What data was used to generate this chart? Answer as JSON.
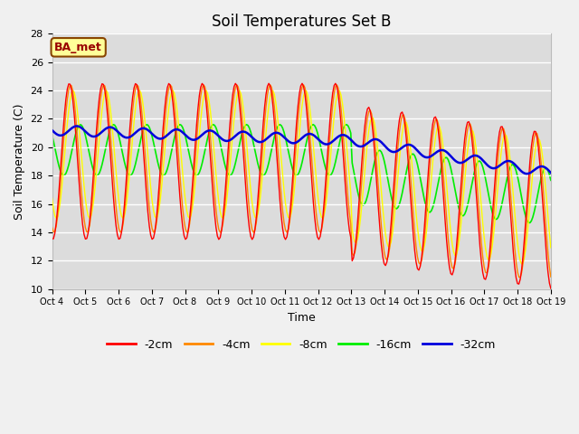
{
  "title": "Soil Temperatures Set B",
  "xlabel": "Time",
  "ylabel": "Soil Temperature (C)",
  "ylim": [
    10,
    28
  ],
  "xlim_days": [
    0,
    15
  ],
  "x_tick_labels": [
    "Oct 4",
    "Oct 5",
    "Oct 6",
    "Oct 7",
    "Oct 8",
    "Oct 9",
    "Oct 10",
    "Oct 11",
    "Oct 12",
    "Oct 13",
    "Oct 14",
    "Oct 15",
    "Oct 16",
    "Oct 17",
    "Oct 18",
    "Oct 19"
  ],
  "colors": {
    "-2cm": "#ff0000",
    "-4cm": "#ff8800",
    "-8cm": "#ffff00",
    "-16cm": "#00ee00",
    "-32cm": "#0000dd"
  },
  "annotation_text": "BA_met",
  "annotation_bg": "#ffff99",
  "annotation_border": "#884400",
  "fig_bg": "#f0f0f0",
  "plot_bg": "#dcdcdc",
  "title_fontsize": 12,
  "axis_fontsize": 9,
  "legend_fontsize": 9
}
